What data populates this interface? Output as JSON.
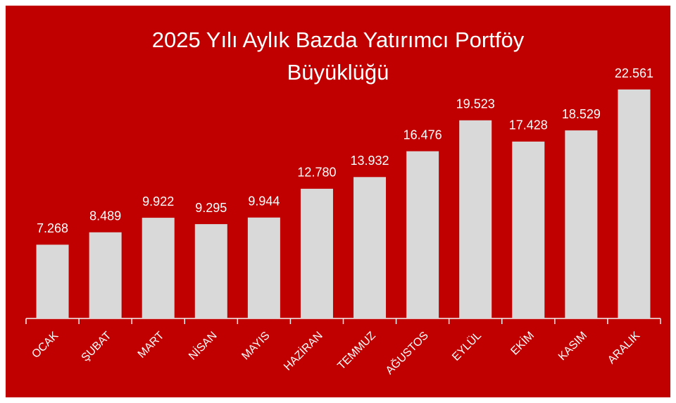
{
  "chart_data": {
    "type": "bar",
    "title": "2025 Yılı Aylık Bazda Yatırımcı Portföy Büyüklüğü",
    "categories": [
      "OCAK",
      "ŞUBAT",
      "MART",
      "NİSAN",
      "MAYIS",
      "HAZİRAN",
      "TEMMUZ",
      "AĞUSTOS",
      "EYLÜL",
      "EKİM",
      "KASIM",
      "ARALIK"
    ],
    "values": [
      7268,
      8489,
      9922,
      9295,
      9944,
      12780,
      13932,
      16476,
      19523,
      17428,
      18529,
      22561
    ],
    "value_labels": [
      "7.268",
      "8.489",
      "9.922",
      "9.295",
      "9.944",
      "12.780",
      "13.932",
      "16.476",
      "19.523",
      "17.428",
      "18.529",
      "22.561"
    ],
    "color": "#d9d9d9",
    "background": "#c00000"
  }
}
